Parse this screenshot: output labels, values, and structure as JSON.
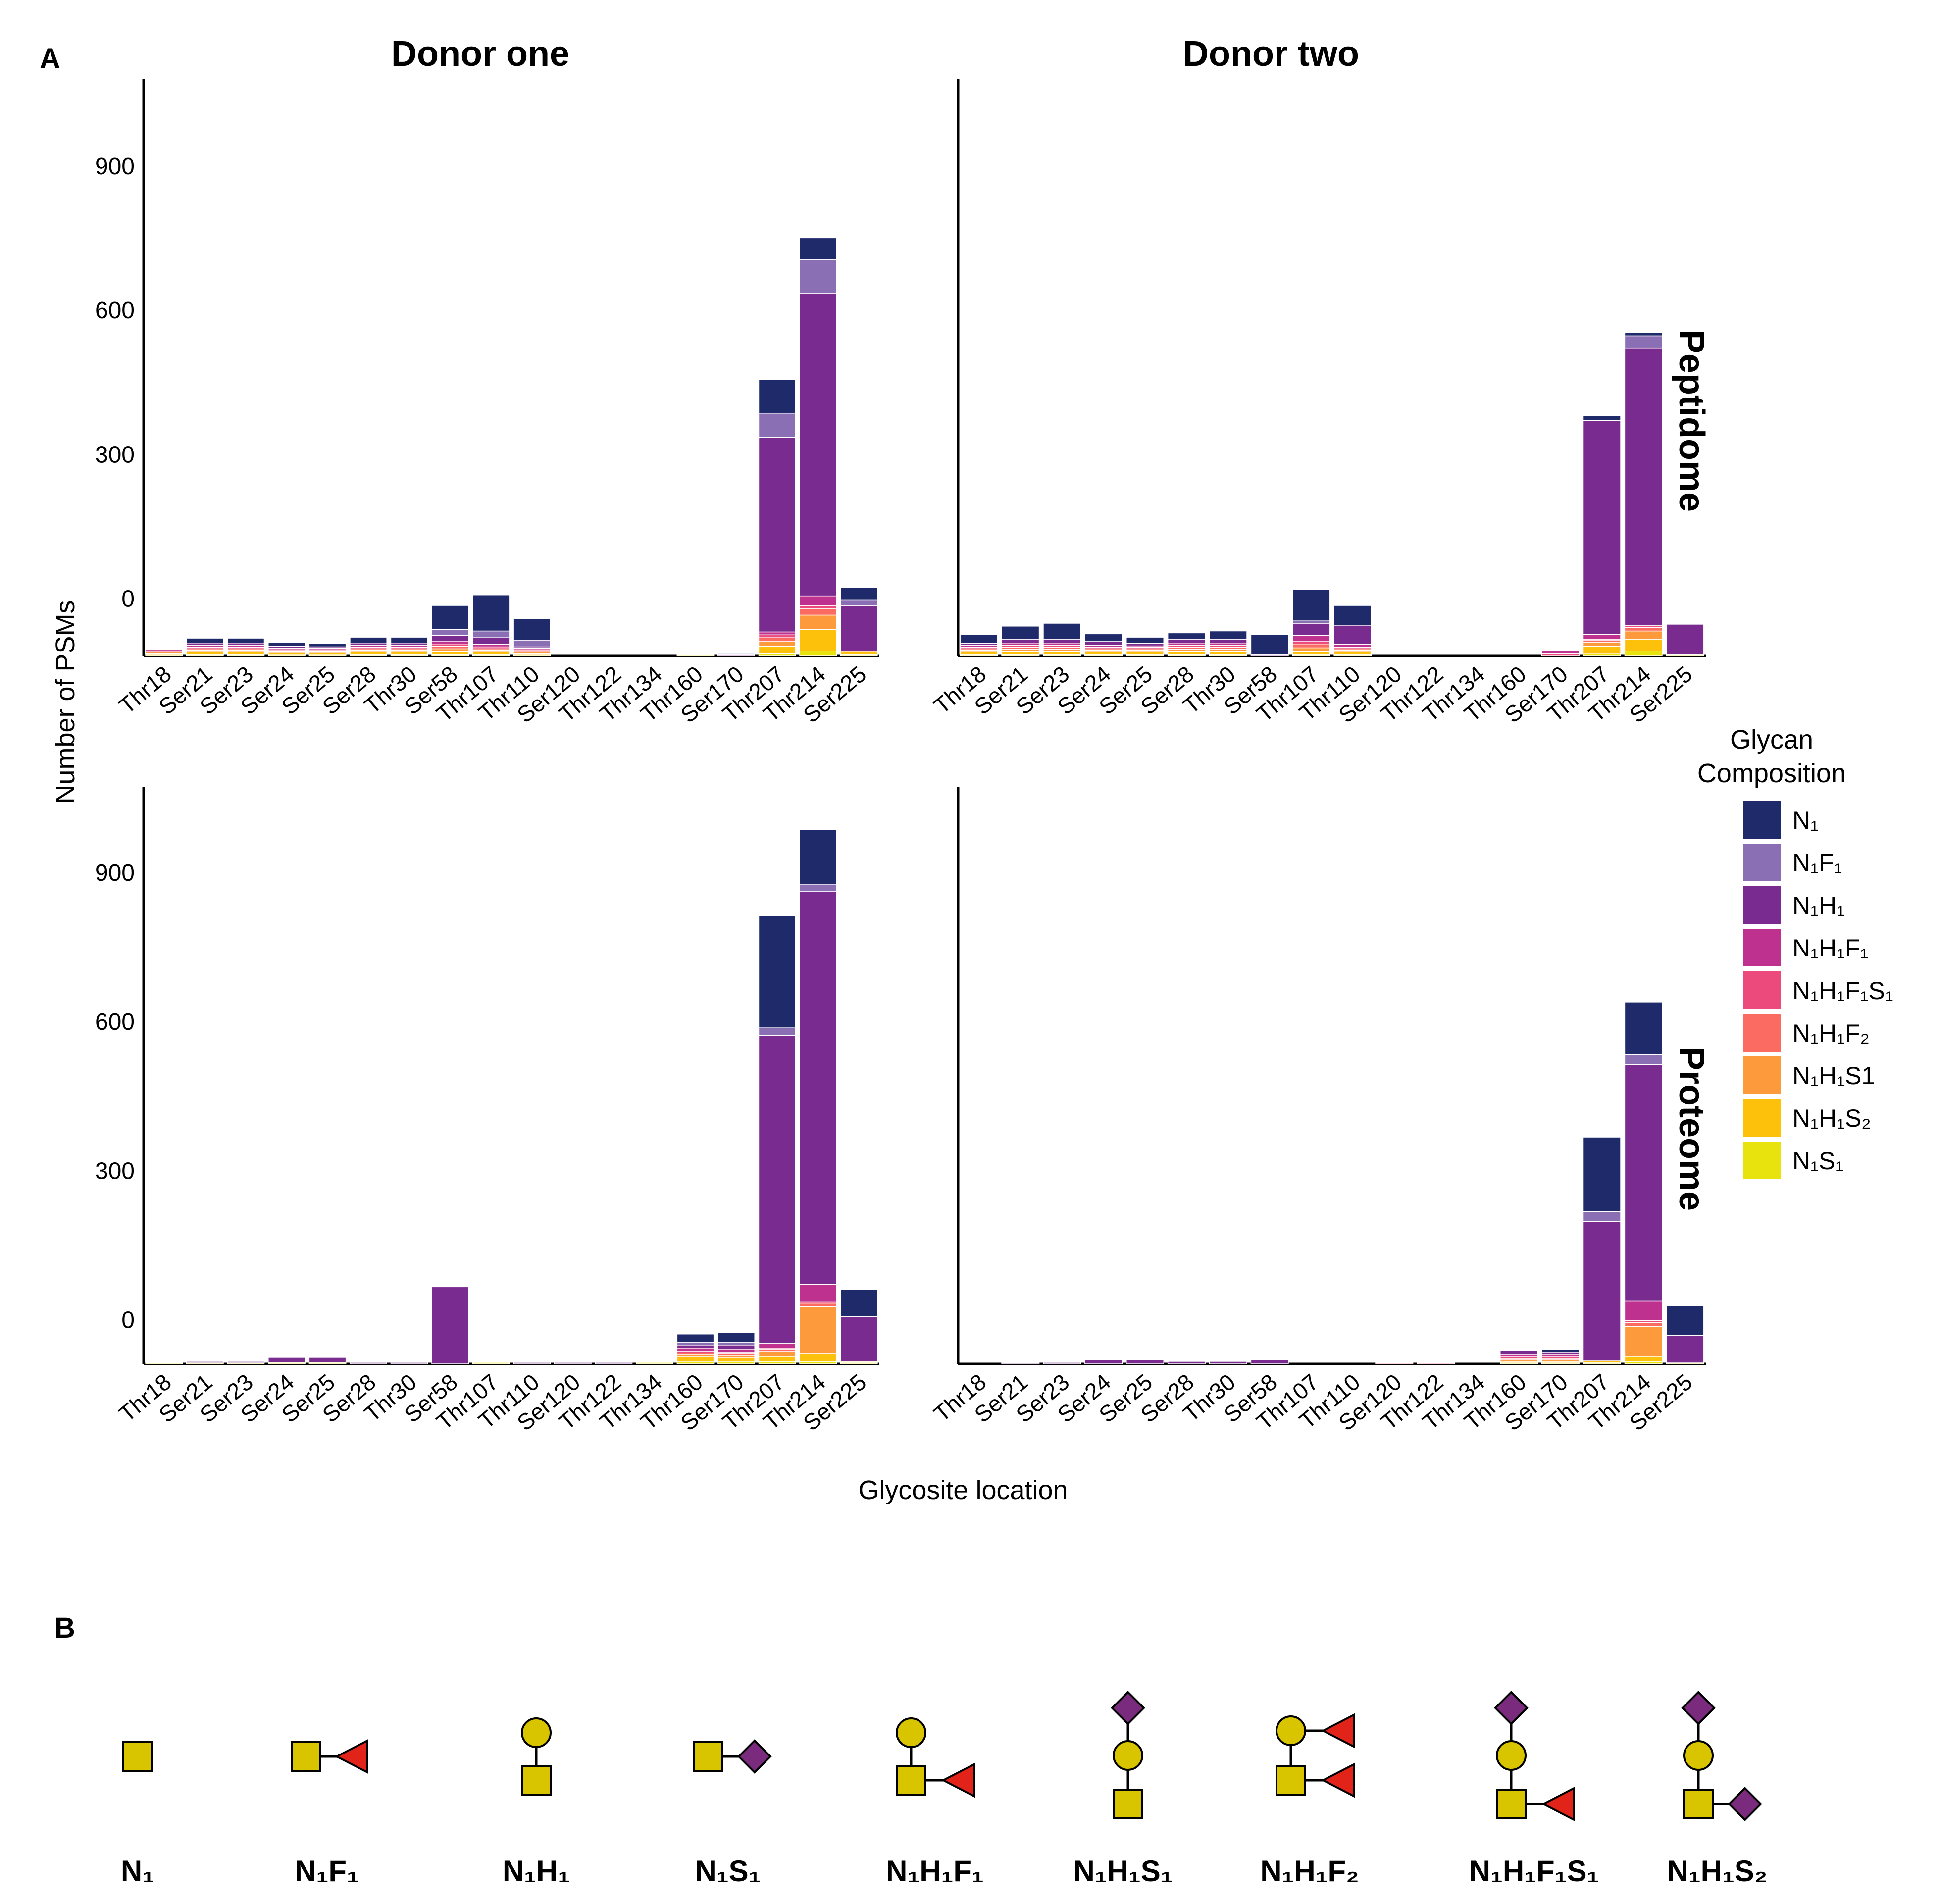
{
  "figure": {
    "panel_a_label": "A",
    "panel_b_label": "B",
    "y_axis_label": "Number of PSMs",
    "x_axis_label": "Glycosite location"
  },
  "legend": {
    "title_line1": "Glycan",
    "title_line2": "Composition",
    "items": [
      {
        "label": "N₁",
        "color": "#1f2a6b"
      },
      {
        "label": "N₁F₁",
        "color": "#8a6fb5"
      },
      {
        "label": "N₁H₁",
        "color": "#7a2b8f"
      },
      {
        "label": "N₁H₁F₁",
        "color": "#be318f"
      },
      {
        "label": "N₁H₁F₁S₁",
        "color": "#ec4a7c"
      },
      {
        "label": "N₁H₁F₂",
        "color": "#fb6b62"
      },
      {
        "label": "N₁H₁S1",
        "color": "#fd9a3c"
      },
      {
        "label": "N₁H₁S₂",
        "color": "#fdc10b"
      },
      {
        "label": "N₁S₁",
        "color": "#e8e30c"
      }
    ]
  },
  "chart_data": [
    {
      "type": "bar",
      "stacked": true,
      "title": "Donor one",
      "row_label": "",
      "ylabel": "Number of PSMs",
      "xlabel": "Glycosite location",
      "ylim": [
        -90,
        1110
      ],
      "yticks": [
        0,
        300,
        600,
        900
      ],
      "categories": [
        "Thr18",
        "Ser21",
        "Ser23",
        "Ser24",
        "Ser25",
        "Ser28",
        "Thr30",
        "Ser58",
        "Thr107",
        "Thr110",
        "Ser120",
        "Thr122",
        "Thr134",
        "Thr160",
        "Ser170",
        "Thr207",
        "Thr214",
        "Ser225"
      ],
      "series": [
        {
          "name": "N₁S₁",
          "values": [
            2,
            3,
            3,
            2,
            2,
            3,
            3,
            3,
            3,
            2,
            0,
            0,
            0,
            2,
            0,
            5,
            10,
            3
          ]
        },
        {
          "name": "N₁H₁S₂",
          "values": [
            3,
            5,
            5,
            4,
            4,
            5,
            5,
            6,
            5,
            3,
            0,
            0,
            0,
            0,
            0,
            15,
            45,
            5
          ]
        },
        {
          "name": "N₁H₁S1",
          "values": [
            3,
            4,
            4,
            3,
            3,
            4,
            4,
            6,
            4,
            3,
            0,
            0,
            0,
            0,
            0,
            10,
            30,
            2
          ]
        },
        {
          "name": "N₁H₁F₂",
          "values": [
            0,
            3,
            3,
            2,
            2,
            3,
            3,
            5,
            3,
            3,
            0,
            0,
            0,
            0,
            0,
            8,
            13,
            0
          ]
        },
        {
          "name": "N₁H₁F₁S₁",
          "values": [
            2,
            3,
            3,
            2,
            2,
            3,
            3,
            5,
            4,
            2,
            0,
            0,
            0,
            0,
            0,
            6,
            7,
            0
          ]
        },
        {
          "name": "N₁H₁F₁",
          "values": [
            3,
            4,
            4,
            3,
            3,
            4,
            4,
            6,
            5,
            3,
            0,
            0,
            0,
            0,
            0,
            6,
            20,
            0
          ]
        },
        {
          "name": "N₁H₁",
          "values": [
            0,
            5,
            5,
            4,
            3,
            5,
            5,
            12,
            14,
            3,
            0,
            0,
            0,
            0,
            3,
            405,
            630,
            95
          ]
        },
        {
          "name": "N₁F₁",
          "values": [
            0,
            0,
            0,
            0,
            0,
            0,
            0,
            12,
            14,
            14,
            0,
            0,
            0,
            0,
            0,
            50,
            70,
            12
          ]
        },
        {
          "name": "N₁",
          "values": [
            0,
            10,
            10,
            8,
            7,
            12,
            12,
            50,
            75,
            45,
            0,
            0,
            0,
            0,
            2,
            70,
            45,
            25
          ]
        }
      ]
    },
    {
      "type": "bar",
      "stacked": true,
      "title": "Donor two",
      "row_label": "Peptidome",
      "ylabel": "Number of PSMs",
      "xlabel": "Glycosite location",
      "ylim": [
        -90,
        1110
      ],
      "yticks": [
        0,
        300,
        600,
        900
      ],
      "categories": [
        "Thr18",
        "Ser21",
        "Ser23",
        "Ser24",
        "Ser25",
        "Ser28",
        "Thr30",
        "Ser58",
        "Thr107",
        "Thr110",
        "Ser120",
        "Thr122",
        "Thr134",
        "Thr160",
        "Ser170",
        "Thr207",
        "Thr214",
        "Ser225"
      ],
      "series": [
        {
          "name": "N₁S₁",
          "values": [
            3,
            3,
            3,
            3,
            3,
            3,
            3,
            0,
            3,
            3,
            0,
            0,
            0,
            0,
            0,
            4,
            10,
            3
          ]
        },
        {
          "name": "N₁H₁S₂",
          "values": [
            5,
            6,
            6,
            5,
            5,
            6,
            6,
            0,
            6,
            5,
            0,
            0,
            0,
            0,
            0,
            16,
            25,
            0
          ]
        },
        {
          "name": "N₁H₁S1",
          "values": [
            4,
            5,
            5,
            4,
            4,
            5,
            5,
            0,
            8,
            4,
            0,
            0,
            0,
            0,
            0,
            8,
            17,
            0
          ]
        },
        {
          "name": "N₁H₁F₂",
          "values": [
            3,
            4,
            4,
            3,
            3,
            4,
            4,
            0,
            8,
            3,
            0,
            0,
            0,
            0,
            0,
            4,
            7,
            0
          ]
        },
        {
          "name": "N₁H₁F₁S₁",
          "values": [
            3,
            4,
            4,
            3,
            3,
            4,
            4,
            0,
            6,
            3,
            0,
            0,
            0,
            0,
            5,
            3,
            4,
            0
          ]
        },
        {
          "name": "N₁H₁F₁",
          "values": [
            4,
            5,
            5,
            4,
            3,
            5,
            5,
            0,
            12,
            6,
            0,
            0,
            0,
            0,
            7,
            10,
            0,
            0
          ]
        },
        {
          "name": "N₁H₁",
          "values": [
            4,
            8,
            8,
            8,
            5,
            8,
            8,
            3,
            25,
            40,
            0,
            0,
            0,
            0,
            0,
            445,
            578,
            63
          ]
        },
        {
          "name": "N₁F₁",
          "values": [
            0,
            0,
            0,
            0,
            0,
            0,
            0,
            0,
            5,
            0,
            0,
            0,
            0,
            0,
            0,
            0,
            25,
            0
          ]
        },
        {
          "name": "N₁",
          "values": [
            19,
            27,
            33,
            16,
            13,
            13,
            17,
            42,
            65,
            41,
            0,
            0,
            0,
            0,
            0,
            10,
            7,
            0
          ]
        }
      ]
    },
    {
      "type": "bar",
      "stacked": true,
      "title": "",
      "row_label": "",
      "ylabel": "Number of PSMs",
      "xlabel": "Glycosite location",
      "ylim": [
        -60,
        1100
      ],
      "yticks": [
        0,
        300,
        600,
        900
      ],
      "categories": [
        "Thr18",
        "Ser21",
        "Ser23",
        "Ser24",
        "Ser25",
        "Ser28",
        "Thr30",
        "Ser58",
        "Thr107",
        "Thr110",
        "Ser120",
        "Thr122",
        "Thr134",
        "Thr160",
        "Ser170",
        "Thr207",
        "Thr214",
        "Ser225"
      ],
      "series": [
        {
          "name": "N₁S₁",
          "values": [
            2,
            2,
            2,
            3,
            3,
            0,
            0,
            0,
            3,
            0,
            0,
            0,
            3,
            4,
            4,
            5,
            5,
            3
          ]
        },
        {
          "name": "N₁H₁S₂",
          "values": [
            0,
            0,
            0,
            0,
            0,
            0,
            0,
            0,
            0,
            0,
            0,
            0,
            0,
            10,
            8,
            10,
            15,
            2
          ]
        },
        {
          "name": "N₁H₁S1",
          "values": [
            0,
            0,
            0,
            0,
            0,
            0,
            0,
            0,
            0,
            0,
            0,
            0,
            0,
            5,
            5,
            10,
            95,
            0
          ]
        },
        {
          "name": "N₁H₁F₂",
          "values": [
            0,
            0,
            0,
            0,
            0,
            0,
            0,
            0,
            0,
            0,
            0,
            0,
            0,
            3,
            3,
            4,
            7,
            0
          ]
        },
        {
          "name": "N₁H₁F₁S₁",
          "values": [
            0,
            0,
            0,
            0,
            0,
            0,
            0,
            0,
            0,
            0,
            0,
            0,
            0,
            3,
            3,
            3,
            3,
            0
          ]
        },
        {
          "name": "N₁H₁F₁",
          "values": [
            0,
            0,
            0,
            0,
            0,
            0,
            0,
            0,
            0,
            0,
            0,
            0,
            0,
            7,
            7,
            9,
            35,
            0
          ]
        },
        {
          "name": "N₁H₁",
          "values": [
            0,
            3,
            3,
            10,
            10,
            3,
            3,
            155,
            0,
            3,
            3,
            3,
            0,
            6,
            8,
            620,
            790,
            90
          ]
        },
        {
          "name": "N₁F₁",
          "values": [
            0,
            0,
            0,
            0,
            0,
            0,
            0,
            0,
            0,
            0,
            0,
            0,
            0,
            5,
            5,
            15,
            15,
            0
          ]
        },
        {
          "name": "N₁",
          "values": [
            0,
            0,
            0,
            0,
            0,
            0,
            0,
            0,
            0,
            0,
            0,
            0,
            0,
            17,
            20,
            225,
            110,
            55
          ]
        }
      ]
    },
    {
      "type": "bar",
      "stacked": true,
      "title": "",
      "row_label": "Proteome",
      "ylabel": "Number of PSMs",
      "xlabel": "Glycosite location",
      "ylim": [
        -60,
        1100
      ],
      "yticks": [
        0,
        300,
        600,
        900
      ],
      "categories": [
        "Thr18",
        "Ser21",
        "Ser23",
        "Ser24",
        "Ser25",
        "Ser28",
        "Thr30",
        "Ser58",
        "Thr107",
        "Thr110",
        "Ser120",
        "Thr122",
        "Thr134",
        "Thr160",
        "Ser170",
        "Thr207",
        "Thr214",
        "Ser225"
      ],
      "series": [
        {
          "name": "N₁S₁",
          "values": [
            0,
            0,
            0,
            0,
            0,
            0,
            0,
            0,
            0,
            0,
            0,
            0,
            0,
            2,
            2,
            3,
            5,
            2
          ]
        },
        {
          "name": "N₁H₁S₂",
          "values": [
            0,
            0,
            0,
            0,
            0,
            0,
            0,
            0,
            0,
            0,
            0,
            0,
            0,
            3,
            3,
            3,
            10,
            0
          ]
        },
        {
          "name": "N₁H₁S1",
          "values": [
            0,
            0,
            0,
            0,
            0,
            0,
            0,
            0,
            0,
            0,
            0,
            0,
            0,
            3,
            3,
            0,
            60,
            0
          ]
        },
        {
          "name": "N₁H₁F₂",
          "values": [
            0,
            0,
            0,
            0,
            0,
            0,
            0,
            0,
            0,
            0,
            2,
            0,
            0,
            3,
            3,
            0,
            8,
            0
          ]
        },
        {
          "name": "N₁H₁F₁S₁",
          "values": [
            0,
            0,
            0,
            0,
            0,
            0,
            0,
            0,
            0,
            0,
            0,
            2,
            0,
            3,
            3,
            0,
            4,
            0
          ]
        },
        {
          "name": "N₁H₁F₁",
          "values": [
            0,
            0,
            0,
            0,
            0,
            0,
            0,
            0,
            0,
            0,
            0,
            0,
            0,
            5,
            5,
            0,
            40,
            0
          ]
        },
        {
          "name": "N₁H₁",
          "values": [
            0,
            2,
            3,
            8,
            8,
            5,
            5,
            8,
            0,
            0,
            0,
            0,
            0,
            8,
            5,
            280,
            475,
            55
          ]
        },
        {
          "name": "N₁F₁",
          "values": [
            0,
            0,
            0,
            0,
            0,
            0,
            0,
            0,
            0,
            0,
            0,
            0,
            0,
            0,
            0,
            20,
            20,
            0
          ]
        },
        {
          "name": "N₁",
          "values": [
            0,
            0,
            0,
            0,
            0,
            0,
            0,
            0,
            0,
            0,
            0,
            0,
            0,
            0,
            5,
            150,
            105,
            60
          ]
        }
      ]
    }
  ],
  "panel_b": {
    "glycans": [
      {
        "label": "N₁"
      },
      {
        "label": "N₁F₁"
      },
      {
        "label": "N₁H₁"
      },
      {
        "label": "N₁S₁"
      },
      {
        "label": "N₁H₁F₁"
      },
      {
        "label": "N₁H₁S₁"
      },
      {
        "label": "N₁H₁F₂"
      },
      {
        "label": "N₁H₁F₁S₁"
      },
      {
        "label": "N₁H₁S₂"
      }
    ],
    "colors": {
      "square": "#d9c400",
      "circle": "#d9c400",
      "triangle": "#e2231a",
      "diamond": "#7a2b7e"
    }
  }
}
